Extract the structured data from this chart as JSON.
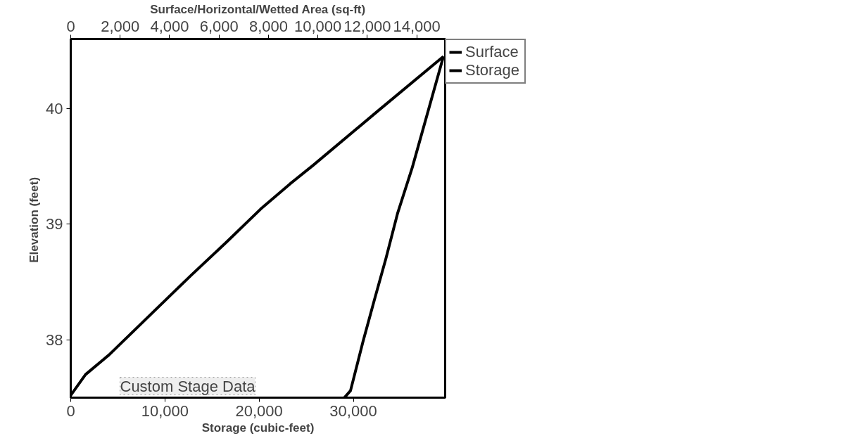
{
  "chart_data": {
    "type": "line",
    "xlabel": "Storage (cubic-feet)",
    "x2label": "Surface/Horizontal/Wetted Area (sq-ft)",
    "ylabel": "Elevation  (feet)",
    "xlim": [
      0,
      39750
    ],
    "xticks": [
      0,
      {
        "value": 10000,
        "label": "10,000"
      },
      {
        "value": 20000,
        "label": "20,000"
      },
      {
        "value": 30000,
        "label": "30,000"
      }
    ],
    "x2lim": [
      0,
      15150
    ],
    "x2ticks": [
      0,
      {
        "value": 2000,
        "label": "2,000"
      },
      {
        "value": 4000,
        "label": "4,000"
      },
      {
        "value": 6000,
        "label": "6,000"
      },
      {
        "value": 8000,
        "label": "8,000"
      },
      {
        "value": 10000,
        "label": "10,000"
      },
      {
        "value": 12000,
        "label": "12,000"
      },
      {
        "value": 14000,
        "label": "14,000"
      }
    ],
    "ylim": [
      37.5,
      40.6
    ],
    "yticks": [
      38,
      39,
      40
    ],
    "series": [
      {
        "name": "Surface",
        "color": "#000000",
        "axis": "x2",
        "x": [
          11070,
          11320,
          11820,
          12280,
          12750,
          13220,
          13820,
          15080
        ],
        "values": [
          37.5,
          37.56,
          37.98,
          38.34,
          38.7,
          39.09,
          39.49,
          40.45
        ]
      },
      {
        "name": "Storage",
        "color": "#000000",
        "x": [
          0,
          1570,
          4070,
          12810,
          16480,
          20160,
          23310,
          25750,
          32490,
          39570
        ],
        "values": [
          37.52,
          37.7,
          37.87,
          38.56,
          38.84,
          39.13,
          39.35,
          39.51,
          39.97,
          40.45
        ]
      }
    ],
    "annotations": [
      "Custom Stage Data"
    ],
    "grid": false,
    "legend": "top right",
    "marker": "none",
    "line_style": "solid"
  }
}
